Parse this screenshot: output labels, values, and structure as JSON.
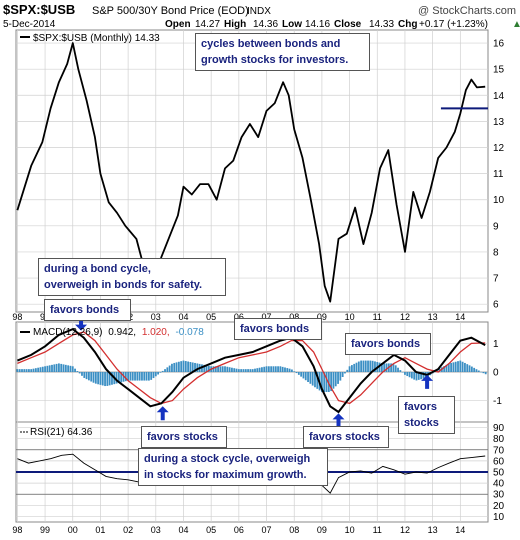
{
  "header": {
    "symbol": "$SPX:$USB",
    "description": "S&P 500/30Y Bond Price (EOD)",
    "exchange": "INDX",
    "watermark": "@ StockCharts.com",
    "date": "5-Dec-2014",
    "open_label": "Open",
    "open": "14.27",
    "high_label": "High",
    "high": "14.36",
    "low_label": "Low",
    "low": "14.16",
    "close_label": "Close",
    "close": "14.33",
    "chg_label": "Chg",
    "chg": "+0.17 (+1.23%)",
    "chg_arrow": "▲"
  },
  "price_legend": "$SPX:$USB (Monthly) 14.33",
  "macd_legend": {
    "name": "MACD(12,26,9)",
    "macd": "0.942,",
    "signal": "1.020,",
    "hist": "-0.078"
  },
  "rsi_legend": "RSI(21) 64.36",
  "annotations": {
    "cycles_1": "cycles between bonds and",
    "cycles_2": "growth stocks for investors.",
    "bond_cycle_1": "during a bond cycle,",
    "bond_cycle_2": "overweigh in bonds for safety.",
    "stock_cycle_1": "during a stock cycle, overweigh",
    "stock_cycle_2": "in stocks for maximum growth.",
    "favors_bonds": "favors bonds",
    "favors_stocks": "favors stocks",
    "favors": "favors",
    "stocks": "stocks"
  },
  "colors": {
    "price_line": "#000000",
    "macd_line": "#000000",
    "signal_line": "#d32f2f",
    "histogram": "#3b8fc4",
    "arrow": "#1533c0",
    "annotation_text": "#1a237e",
    "reference_line": "#0d1a7a",
    "grid": "#d0d0d0"
  },
  "chart_data": {
    "type": "line",
    "x_ticks": [
      "98",
      "99",
      "00",
      "01",
      "02",
      "03",
      "04",
      "05",
      "06",
      "07",
      "08",
      "09",
      "10",
      "11",
      "12",
      "13",
      "14"
    ],
    "panels": [
      {
        "name": "price",
        "series": [
          {
            "name": "$SPX:$USB (Monthly)",
            "x": [
              1998.0,
              1998.5,
              1998.9,
              1999.2,
              1999.5,
              1999.8,
              2000.0,
              2000.2,
              2000.5,
              2000.8,
              2001.0,
              2001.3,
              2001.6,
              2001.9,
              2002.3,
              2002.6,
              2002.9,
              2003.2,
              2003.5,
              2003.8,
              2004.0,
              2004.3,
              2004.6,
              2004.9,
              2005.2,
              2005.5,
              2005.8,
              2006.1,
              2006.4,
              2006.7,
              2007.0,
              2007.3,
              2007.6,
              2007.8,
              2008.0,
              2008.3,
              2008.6,
              2008.9,
              2009.1,
              2009.3,
              2009.6,
              2009.9,
              2010.2,
              2010.5,
              2010.8,
              2011.1,
              2011.4,
              2011.7,
              2012.0,
              2012.3,
              2012.6,
              2012.9,
              2013.2,
              2013.5,
              2013.8,
              2014.0,
              2014.2,
              2014.4,
              2014.6,
              2014.9
            ],
            "y": [
              9.6,
              11.3,
              12.2,
              13.5,
              14.5,
              15.2,
              16.0,
              15.0,
              13.8,
              12.4,
              11.0,
              9.9,
              9.5,
              9.0,
              8.5,
              7.3,
              6.6,
              7.8,
              8.6,
              9.4,
              10.5,
              10.2,
              10.6,
              10.6,
              10.0,
              11.2,
              11.5,
              12.4,
              12.9,
              12.4,
              13.4,
              13.7,
              14.5,
              14.0,
              12.7,
              11.6,
              10.0,
              8.3,
              6.7,
              6.1,
              8.5,
              8.7,
              9.7,
              8.3,
              9.5,
              11.2,
              11.9,
              9.8,
              8.0,
              10.3,
              9.3,
              10.3,
              11.6,
              12.0,
              12.6,
              13.3,
              14.2,
              14.6,
              14.3,
              14.33
            ]
          }
        ],
        "y_ticks": [
          6,
          7,
          8,
          9,
          10,
          11,
          12,
          13,
          14,
          15,
          16
        ],
        "ylim": [
          5.7,
          16.5
        ],
        "reference_line": 13.5
      },
      {
        "name": "MACD(12,26,9)",
        "series": [
          {
            "name": "MACD",
            "x": [
              1998.0,
              1998.5,
              1999.0,
              1999.5,
              2000.0,
              2000.4,
              2000.8,
              2001.2,
              2001.6,
              2002.0,
              2002.4,
              2002.8,
              2003.2,
              2003.6,
              2004.0,
              2004.5,
              2005.0,
              2005.5,
              2006.0,
              2006.5,
              2007.0,
              2007.5,
              2007.9,
              2008.3,
              2008.7,
              2009.0,
              2009.3,
              2009.6,
              2010.0,
              2010.4,
              2010.8,
              2011.2,
              2011.6,
              2012.0,
              2012.4,
              2012.8,
              2013.2,
              2013.6,
              2014.0,
              2014.4,
              2014.9
            ],
            "y": [
              0.4,
              0.6,
              0.9,
              1.3,
              1.5,
              1.2,
              0.7,
              0.1,
              -0.3,
              -0.6,
              -0.9,
              -1.2,
              -1.1,
              -0.7,
              -0.2,
              0.1,
              0.3,
              0.5,
              0.6,
              0.7,
              0.9,
              1.1,
              1.2,
              0.9,
              0.2,
              -0.6,
              -1.2,
              -1.4,
              -0.9,
              -0.4,
              0.0,
              0.3,
              0.6,
              0.4,
              0.0,
              -0.1,
              0.1,
              0.6,
              1.1,
              1.2,
              0.942
            ]
          },
          {
            "name": "Signal",
            "x": [
              1998.0,
              1998.5,
              1999.0,
              1999.5,
              2000.0,
              2000.4,
              2000.8,
              2001.2,
              2001.6,
              2002.0,
              2002.4,
              2002.8,
              2003.2,
              2003.6,
              2004.0,
              2004.5,
              2005.0,
              2005.5,
              2006.0,
              2006.5,
              2007.0,
              2007.5,
              2007.9,
              2008.3,
              2008.7,
              2009.0,
              2009.3,
              2009.6,
              2010.0,
              2010.4,
              2010.8,
              2011.2,
              2011.6,
              2012.0,
              2012.4,
              2012.8,
              2013.2,
              2013.6,
              2014.0,
              2014.4,
              2014.9
            ],
            "y": [
              0.3,
              0.5,
              0.7,
              1.0,
              1.3,
              1.4,
              1.1,
              0.6,
              0.1,
              -0.3,
              -0.6,
              -0.9,
              -1.1,
              -1.0,
              -0.6,
              -0.2,
              0.1,
              0.3,
              0.5,
              0.6,
              0.7,
              0.9,
              1.1,
              1.1,
              0.7,
              0.1,
              -0.5,
              -1.0,
              -1.1,
              -0.8,
              -0.4,
              0.0,
              0.3,
              0.5,
              0.3,
              0.1,
              0.0,
              0.3,
              0.7,
              1.0,
              1.02
            ]
          },
          {
            "name": "Histogram",
            "x": [
              1998.0,
              1998.5,
              1999.0,
              1999.5,
              2000.0,
              2000.4,
              2000.8,
              2001.2,
              2001.6,
              2002.0,
              2002.4,
              2002.8,
              2003.2,
              2003.6,
              2004.0,
              2004.5,
              2005.0,
              2005.5,
              2006.0,
              2006.5,
              2007.0,
              2007.5,
              2007.9,
              2008.3,
              2008.7,
              2009.0,
              2009.3,
              2009.6,
              2010.0,
              2010.4,
              2010.8,
              2011.2,
              2011.6,
              2012.0,
              2012.4,
              2012.8,
              2013.2,
              2013.6,
              2014.0,
              2014.4,
              2014.9
            ],
            "y": [
              0.1,
              0.1,
              0.2,
              0.3,
              0.2,
              -0.2,
              -0.4,
              -0.5,
              -0.4,
              -0.3,
              -0.3,
              -0.3,
              0.0,
              0.3,
              0.4,
              0.3,
              0.2,
              0.2,
              0.1,
              0.1,
              0.2,
              0.2,
              0.1,
              -0.2,
              -0.5,
              -0.7,
              -0.7,
              -0.4,
              0.2,
              0.4,
              0.4,
              0.3,
              0.3,
              -0.1,
              -0.3,
              -0.2,
              0.1,
              0.3,
              0.4,
              0.2,
              -0.078
            ]
          }
        ],
        "y_ticks": [
          -1,
          0,
          1
        ],
        "ylim": [
          -1.75,
          1.75
        ]
      },
      {
        "name": "RSI(21)",
        "series": [
          {
            "name": "RSI(21)",
            "x": [
              1998.0,
              1998.4,
              1998.8,
              1999.2,
              1999.6,
              2000.0,
              2000.4,
              2000.8,
              2001.2,
              2001.6,
              2002.0,
              2002.4,
              2002.8,
              2003.2,
              2003.6,
              2004.0,
              2004.5,
              2005.0,
              2005.5,
              2006.0,
              2006.5,
              2007.0,
              2007.5,
              2007.9,
              2008.3,
              2008.7,
              2009.0,
              2009.3,
              2009.6,
              2010.0,
              2010.4,
              2010.8,
              2011.2,
              2011.6,
              2012.0,
              2012.4,
              2012.8,
              2013.2,
              2013.6,
              2014.0,
              2014.4,
              2014.9
            ],
            "y": [
              62,
              58,
              60,
              62,
              65,
              66,
              58,
              52,
              46,
              44,
              43,
              41,
              38,
              42,
              48,
              50,
              52,
              51,
              53,
              54,
              55,
              56,
              57,
              55,
              50,
              43,
              38,
              31,
              45,
              50,
              51,
              49,
              55,
              52,
              48,
              50,
              49,
              54,
              58,
              62,
              63,
              64.36
            ]
          }
        ],
        "y_ticks": [
          10,
          20,
          30,
          40,
          50,
          60,
          70,
          80,
          90
        ],
        "ylim": [
          5,
          95
        ],
        "bands": [
          30,
          50,
          70
        ]
      }
    ]
  }
}
